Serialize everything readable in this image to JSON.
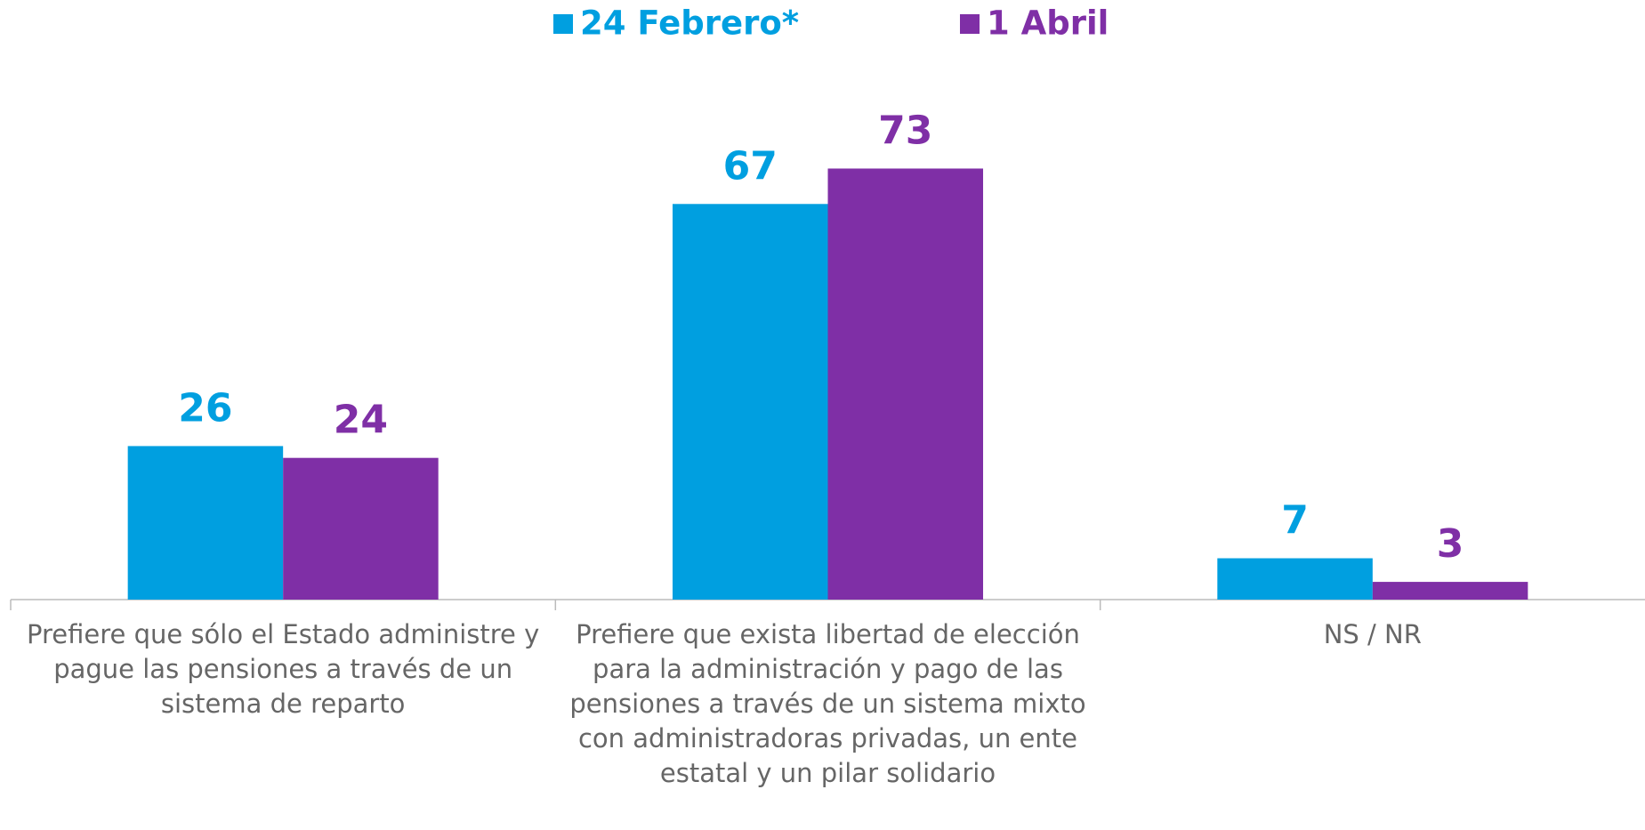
{
  "chart_data": {
    "type": "bar",
    "categories": [
      "Prefiere que sólo el Estado administre y pague las pensiones a través de un sistema de reparto",
      "Prefiere que exista libertad de elección para la administración y pago de las pensiones a través de un sistema mixto con administradoras privadas, un ente estatal y un pilar solidario",
      "NS / NR"
    ],
    "series": [
      {
        "name": "24 Febrero*",
        "color": "#009FE0",
        "values": [
          26,
          67,
          7
        ]
      },
      {
        "name": "1 Abril",
        "color": "#7F2FA6",
        "values": [
          24,
          73,
          3
        ]
      }
    ],
    "ylim": [
      0,
      80
    ],
    "legend": "top"
  }
}
